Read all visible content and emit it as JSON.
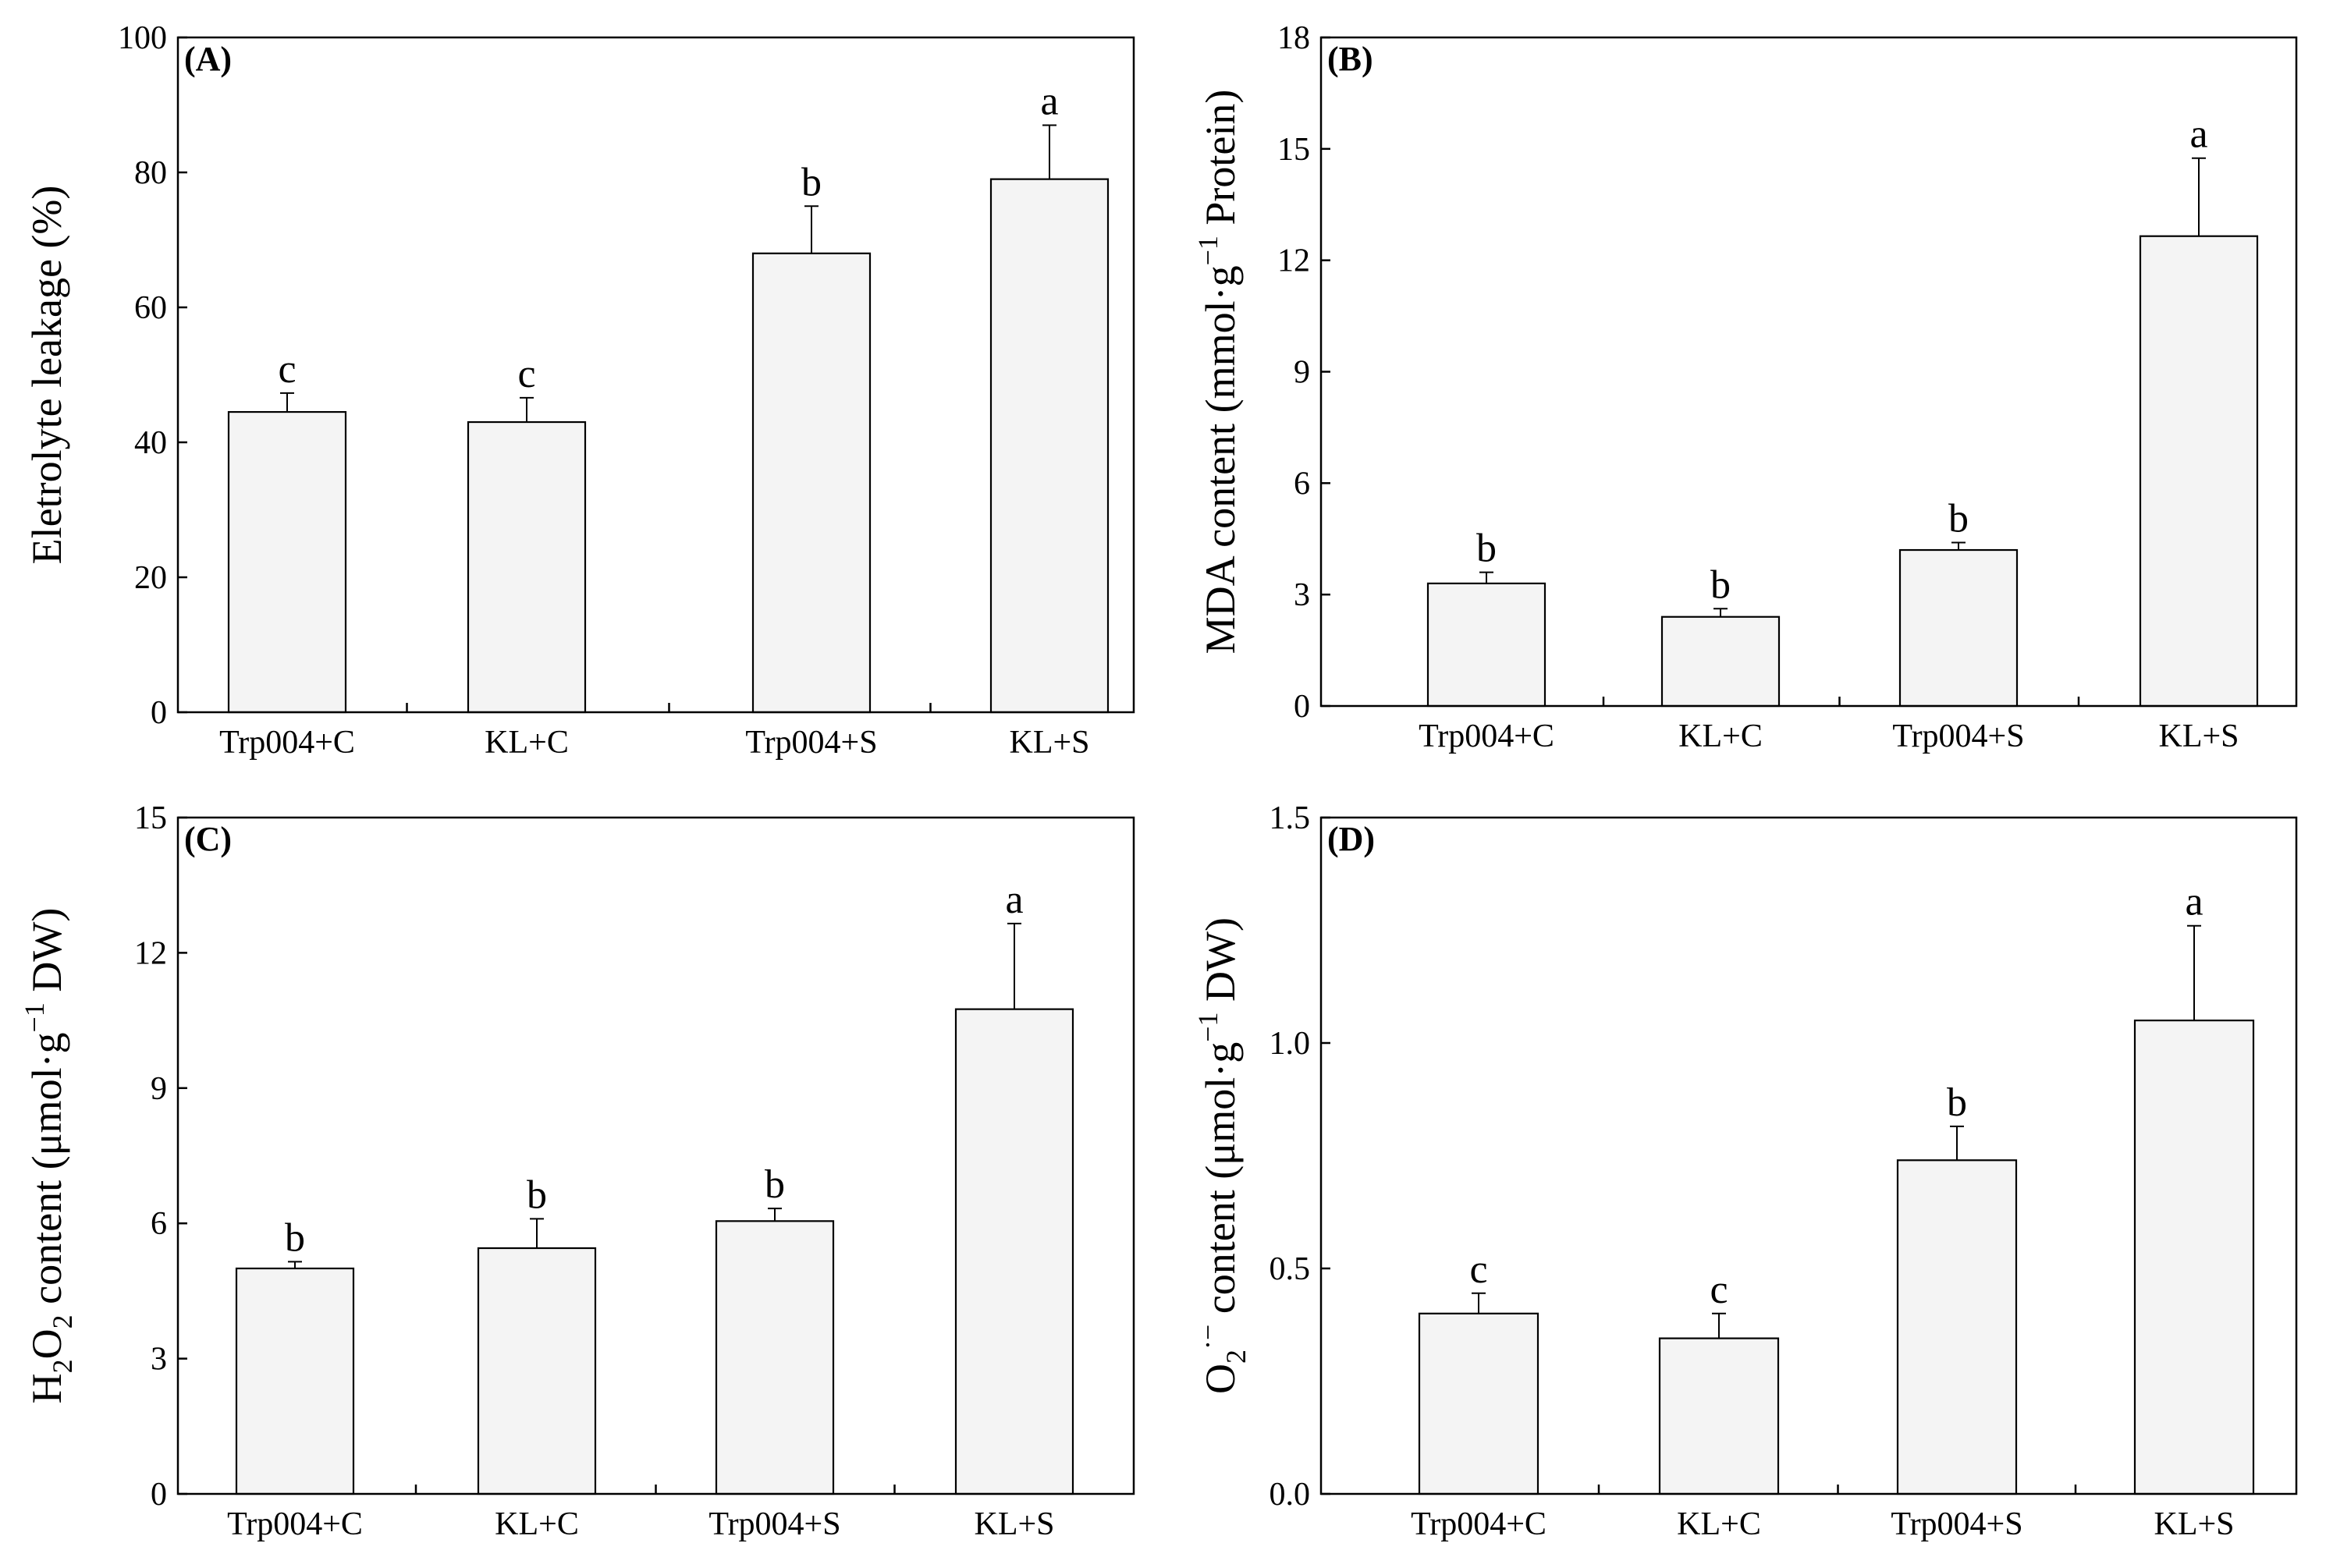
{
  "figure": {
    "panels": [
      "A",
      "B",
      "C",
      "D"
    ]
  },
  "chart_data": [
    {
      "type": "bar",
      "panel_label": "(A)",
      "ylabel": "Eletrolyte leakage (%)",
      "ylabel_parts": [
        {
          "t": "Eletrolyte leakage (%)",
          "s": "n"
        }
      ],
      "categories": [
        "Trp004+C",
        "KL+C",
        "Trp004+S",
        "KL+S"
      ],
      "values": [
        44.5,
        43,
        68,
        79
      ],
      "errors": [
        2.8,
        3.6,
        7,
        8
      ],
      "significance": [
        "c",
        "c",
        "b",
        "a"
      ],
      "ylim": [
        0,
        100
      ],
      "yticks": [
        0,
        20,
        40,
        60,
        80,
        100
      ],
      "ytick_labels": [
        "0",
        "20",
        "40",
        "60",
        "80",
        "100"
      ]
    },
    {
      "type": "bar",
      "panel_label": "(B)",
      "ylabel": "MDA content (mmol·g−1 Protein)",
      "ylabel_parts": [
        {
          "t": "MDA content (mmol·g",
          "s": "n"
        },
        {
          "t": "−1",
          "s": "sup"
        },
        {
          "t": " Protein)",
          "s": "n"
        }
      ],
      "categories": [
        "Trp004+C",
        "KL+C",
        "Trp004+S",
        "KL+S"
      ],
      "values": [
        3.3,
        2.4,
        4.2,
        12.65
      ],
      "errors": [
        0.3,
        0.22,
        0.2,
        2.1
      ],
      "significance": [
        "b",
        "b",
        "b",
        "a"
      ],
      "ylim": [
        0,
        18
      ],
      "yticks": [
        0,
        3,
        6,
        9,
        12,
        15,
        18
      ],
      "ytick_labels": [
        "0",
        "3",
        "6",
        "9",
        "12",
        "15",
        "18"
      ]
    },
    {
      "type": "bar",
      "panel_label": "(C)",
      "ylabel": "H2O2 content (μmol·g−1 DW)",
      "ylabel_parts": [
        {
          "t": "H",
          "s": "n"
        },
        {
          "t": "2",
          "s": "sub"
        },
        {
          "t": "O",
          "s": "n"
        },
        {
          "t": "2",
          "s": "sub"
        },
        {
          "t": " content (μmol·g",
          "s": "n"
        },
        {
          "t": "−1",
          "s": "sup"
        },
        {
          "t": " DW)",
          "s": "n"
        }
      ],
      "categories": [
        "Trp004+C",
        "KL+C",
        "Trp004+S",
        "KL+S"
      ],
      "values": [
        5,
        5.45,
        6.05,
        10.75
      ],
      "errors": [
        0.15,
        0.65,
        0.28,
        1.9
      ],
      "significance": [
        "b",
        "b",
        "b",
        "a"
      ],
      "ylim": [
        0,
        15
      ],
      "yticks": [
        0,
        3,
        6,
        9,
        12,
        15
      ],
      "ytick_labels": [
        "0",
        "3",
        "6",
        "9",
        "12",
        "15"
      ]
    },
    {
      "type": "bar",
      "panel_label": "(D)",
      "ylabel": "O2·− content (μmol·g−1 DW)",
      "ylabel_parts": [
        {
          "t": "O",
          "s": "n"
        },
        {
          "t": "2",
          "s": "sub"
        },
        {
          "t": "·−",
          "s": "sup"
        },
        {
          "t": " content (μmol·g",
          "s": "n"
        },
        {
          "t": "−1",
          "s": "sup"
        },
        {
          "t": " DW)",
          "s": "n"
        }
      ],
      "categories": [
        "Trp004+C",
        "KL+C",
        "Trp004+S",
        "KL+S"
      ],
      "values": [
        0.4,
        0.345,
        0.74,
        1.05
      ],
      "errors": [
        0.045,
        0.055,
        0.075,
        0.21
      ],
      "significance": [
        "c",
        "c",
        "b",
        "a"
      ],
      "ylim": [
        0,
        1.5
      ],
      "yticks": [
        0,
        0.5,
        1.0,
        1.5
      ],
      "ytick_labels": [
        "0.0",
        "0.5",
        "1.0",
        "1.5"
      ]
    }
  ]
}
